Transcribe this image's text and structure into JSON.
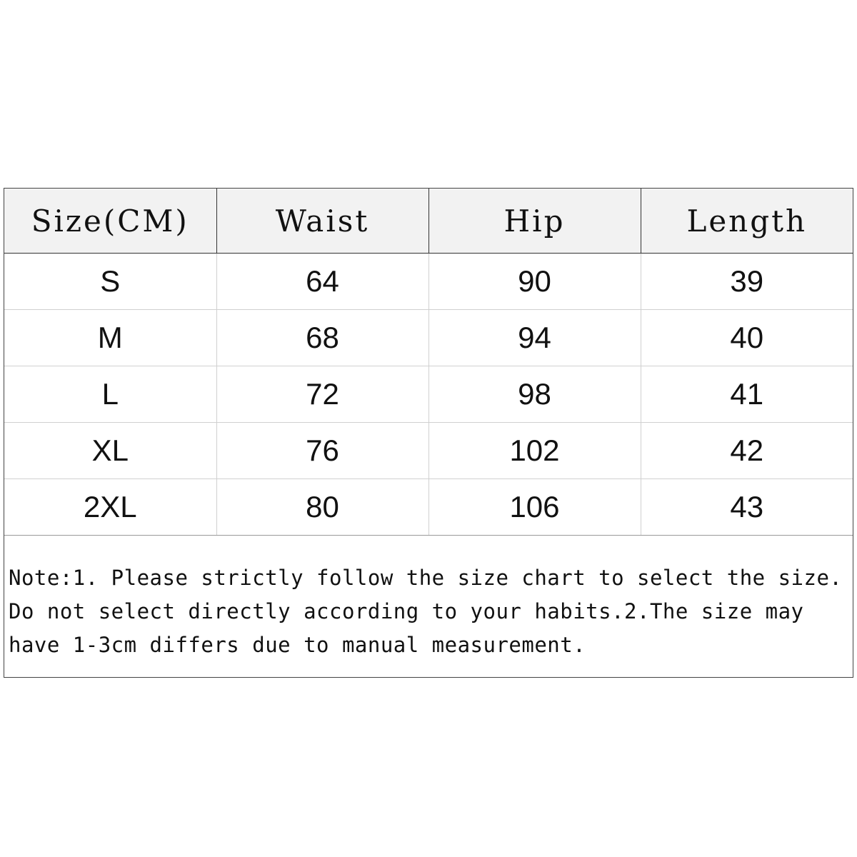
{
  "table": {
    "headers": [
      "Size(CM)",
      "Waist",
      "Hip",
      "Length"
    ],
    "rows": [
      [
        "S",
        "64",
        "90",
        "39"
      ],
      [
        "M",
        "68",
        "94",
        "40"
      ],
      [
        "L",
        "72",
        "98",
        "41"
      ],
      [
        "XL",
        "76",
        "102",
        "42"
      ],
      [
        "2XL",
        "80",
        "106",
        "43"
      ]
    ]
  },
  "note": "Note:1. Please strictly follow the size chart to select the size. Do not select directly according to your habits.2.The size may have 1-3cm differs due to manual measurement."
}
